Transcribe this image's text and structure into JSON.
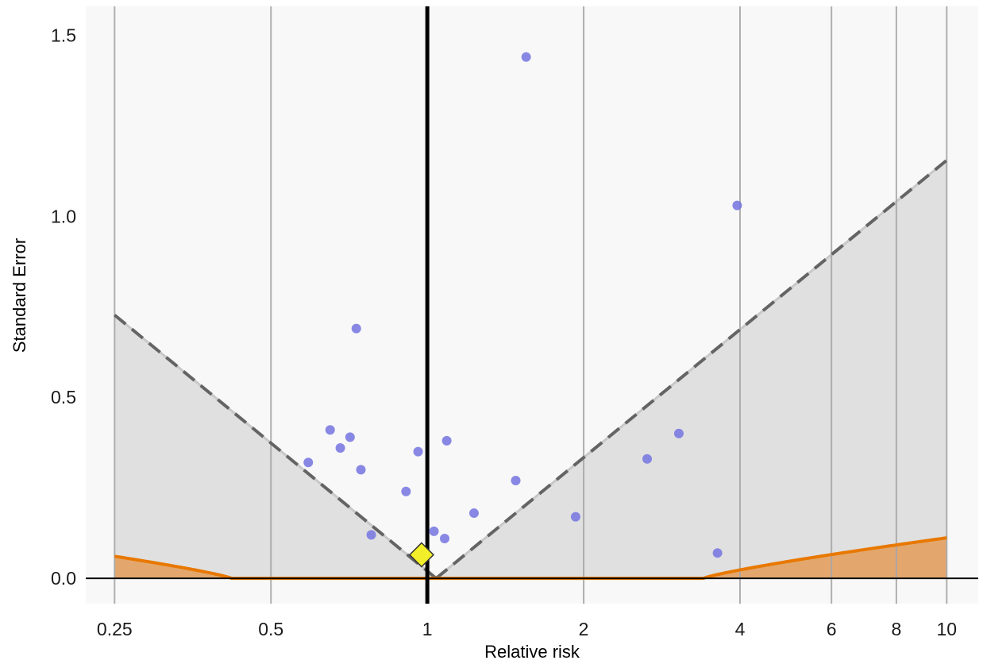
{
  "chart_data": {
    "type": "scatter",
    "title": "",
    "xlabel": "Relative risk",
    "ylabel": "Standard Error",
    "x_scale": "log",
    "xlim": [
      0.22,
      11.5
    ],
    "ylim": [
      -0.07,
      1.58
    ],
    "x_ticks": [
      {
        "value": 0.25,
        "label": "0.25"
      },
      {
        "value": 0.5,
        "label": "0.5"
      },
      {
        "value": 1,
        "label": "1"
      },
      {
        "value": 2,
        "label": "2"
      },
      {
        "value": 4,
        "label": "4"
      },
      {
        "value": 6,
        "label": "6"
      },
      {
        "value": 8,
        "label": "8"
      },
      {
        "value": 10,
        "label": "10"
      }
    ],
    "y_ticks": [
      {
        "value": 0.0,
        "label": "0.0"
      },
      {
        "value": 0.5,
        "label": "0.5"
      },
      {
        "value": 1.0,
        "label": "1.0"
      },
      {
        "value": 1.5,
        "label": "1.5"
      }
    ],
    "vertical_gridlines": [
      0.25,
      0.5,
      1,
      2,
      4,
      6,
      8,
      10
    ],
    "reference_line_x": 1,
    "points": [
      {
        "x": 1.55,
        "y": 1.44
      },
      {
        "x": 3.95,
        "y": 1.03
      },
      {
        "x": 0.73,
        "y": 0.69
      },
      {
        "x": 0.65,
        "y": 0.41
      },
      {
        "x": 0.71,
        "y": 0.39
      },
      {
        "x": 1.09,
        "y": 0.38
      },
      {
        "x": 3.05,
        "y": 0.4
      },
      {
        "x": 0.68,
        "y": 0.36
      },
      {
        "x": 0.96,
        "y": 0.35
      },
      {
        "x": 0.59,
        "y": 0.32
      },
      {
        "x": 2.65,
        "y": 0.33
      },
      {
        "x": 0.745,
        "y": 0.3
      },
      {
        "x": 1.48,
        "y": 0.27
      },
      {
        "x": 0.91,
        "y": 0.24
      },
      {
        "x": 1.23,
        "y": 0.18
      },
      {
        "x": 1.93,
        "y": 0.17
      },
      {
        "x": 0.78,
        "y": 0.12
      },
      {
        "x": 1.03,
        "y": 0.13
      },
      {
        "x": 1.08,
        "y": 0.11
      },
      {
        "x": 3.62,
        "y": 0.07
      }
    ],
    "pooled_estimate": {
      "x": 0.975,
      "y": 0.065
    },
    "funnel": {
      "center": 1.04,
      "z": 1.96,
      "x_range": [
        0.25,
        10
      ]
    },
    "significance_contour": {
      "xlo": 0.42,
      "xhi": 3.4,
      "a": 0.105
    },
    "colors": {
      "panel_background": "#f8f8f8",
      "gridline": "#a6a6a6",
      "funnel_fill": "#e0e0e0",
      "funnel_edge": "#c8c8c8",
      "funnel_dash": "#646464",
      "region_fill": "#e3a76d",
      "region_line": "#e87800",
      "point": "#7474e0",
      "pooled_fill": "#f2ee29",
      "pooled_stroke": "#333333",
      "reference_line": "#000000",
      "zero_line": "#000000"
    }
  }
}
